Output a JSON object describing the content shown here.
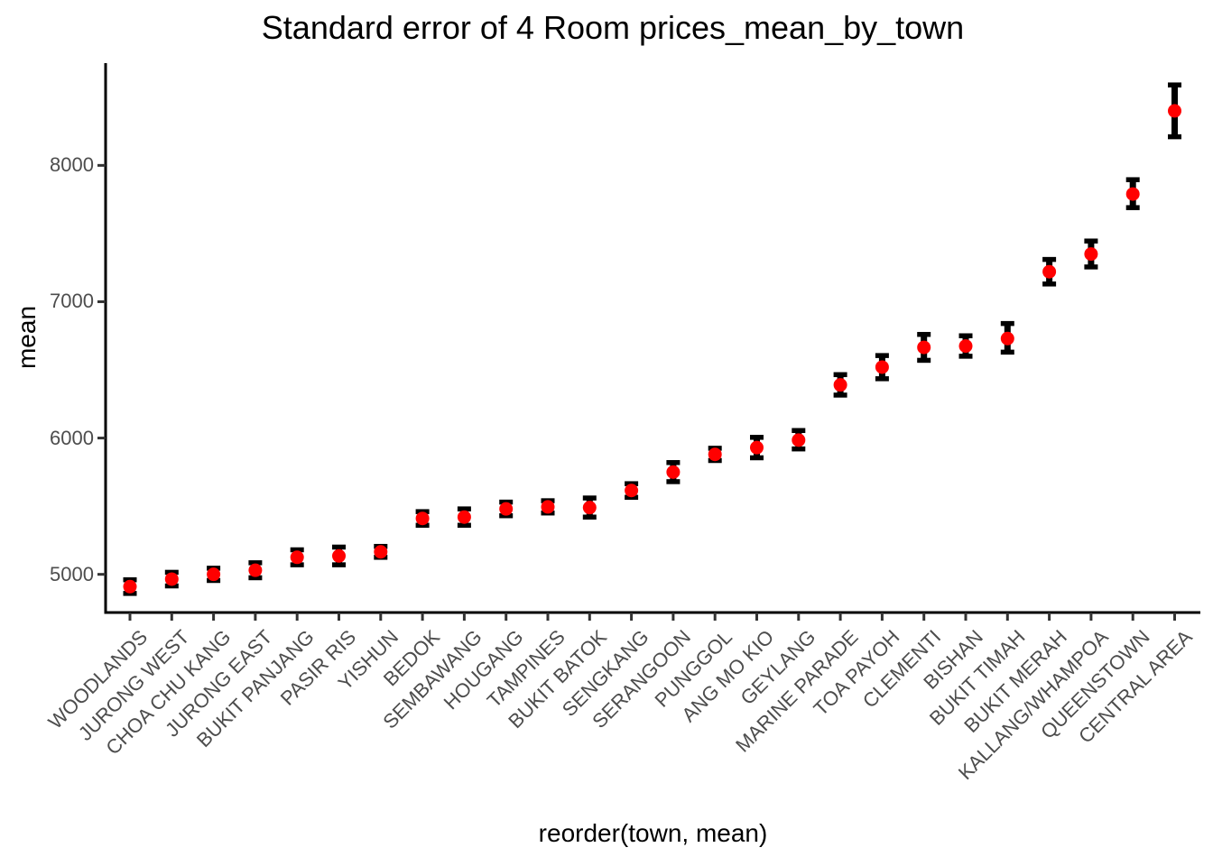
{
  "chart_data": {
    "type": "scatter",
    "title": "Standard error of 4 Room prices_mean_by_town",
    "xlabel": "reorder(town, mean)",
    "ylabel": "mean",
    "ylim": [
      4720,
      8750
    ],
    "yticks": [
      5000,
      6000,
      7000,
      8000
    ],
    "grid": false,
    "legend_position": "none",
    "background": "#FFFFFF",
    "point_color": "#FF0000",
    "errorbar_color": "#000000",
    "axis_line_color": "#000000",
    "tick_label_color": "#4D4D4D",
    "categories": [
      "WOODLANDS",
      "JURONG WEST",
      "CHOA CHU KANG",
      "JURONG EAST",
      "BUKIT PANJANG",
      "PASIR RIS",
      "YISHUN",
      "BEDOK",
      "SEMBAWANG",
      "HOUGANG",
      "TAMPINES",
      "BUKIT BATOK",
      "SENGKANG",
      "SERANGOON",
      "PUNGGOL",
      "ANG MO KIO",
      "GEYLANG",
      "MARINE PARADE",
      "TOA PAYOH",
      "CLEMENTI",
      "BISHAN",
      "BUKIT TIMAH",
      "BUKIT MERAH",
      "KALLANG/WHAMPOA",
      "QUEENSTOWN",
      "CENTRAL AREA"
    ],
    "series": [
      {
        "name": "mean",
        "values": [
          4910,
          4965,
          5000,
          5030,
          5125,
          5135,
          5165,
          5410,
          5420,
          5480,
          5495,
          5490,
          5615,
          5750,
          5880,
          5930,
          5985,
          6390,
          6520,
          6665,
          6675,
          6730,
          7220,
          7350,
          7790,
          8400
        ]
      },
      {
        "name": "lower",
        "values": [
          4860,
          4915,
          4955,
          4975,
          5070,
          5070,
          5125,
          5360,
          5360,
          5430,
          5450,
          5420,
          5565,
          5680,
          5835,
          5855,
          5920,
          6315,
          6435,
          6570,
          6600,
          6630,
          7130,
          7255,
          7690,
          8210
        ]
      },
      {
        "name": "upper",
        "values": [
          4960,
          5015,
          5045,
          5085,
          5180,
          5200,
          5205,
          5460,
          5480,
          5530,
          5540,
          5560,
          5665,
          5820,
          5925,
          6005,
          6055,
          6465,
          6605,
          6760,
          6750,
          6840,
          7310,
          7445,
          7895,
          8590
        ]
      }
    ]
  }
}
